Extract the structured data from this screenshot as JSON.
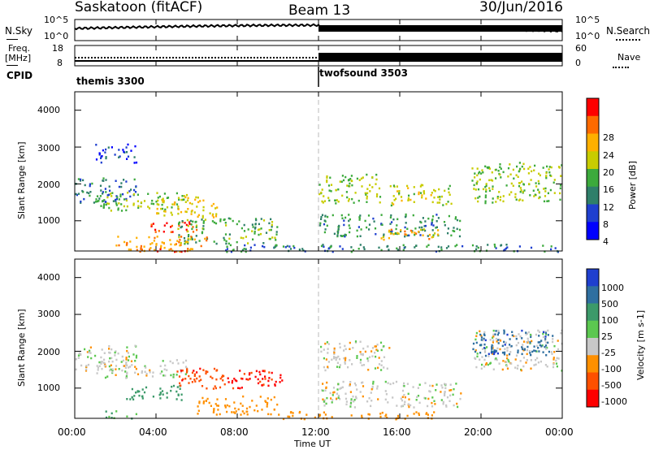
{
  "header": {
    "station": "Saskatoon (fitACF)",
    "beam": "Beam 13",
    "date": "30/Jun/2016"
  },
  "side_labels": {
    "nsky": "N.Sky",
    "freq_line1": "Freq.",
    "freq_line2": "[MHz]",
    "cpid": "CPID",
    "nsearch": "N.Search",
    "nave": "Nave"
  },
  "noise_axis": {
    "left_ticks": [
      "10^5",
      "10^0"
    ],
    "right_ticks": [
      "10^5",
      "10^0"
    ]
  },
  "freq_axis": {
    "left_ticks": [
      "18",
      "8"
    ],
    "right_ticks": [
      "60",
      "0"
    ]
  },
  "cpid_modes": [
    {
      "name": "themis 3300",
      "start_hour": 0,
      "end_hour": 12.0
    },
    {
      "name": "twofsound 3503",
      "start_hour": 12.0,
      "end_hour": 24
    }
  ],
  "time_axis": {
    "label": "Time UT",
    "ticks": [
      "00:00",
      "04:00",
      "08:00",
      "12:00",
      "16:00",
      "20:00",
      "00:00"
    ],
    "range_hours": [
      0,
      24
    ]
  },
  "chart_data": [
    {
      "type": "heatmap",
      "name": "power",
      "ylabel": "Slant Range [km]",
      "yticks": [
        "4000",
        "3000",
        "2000",
        "1000"
      ],
      "ylim": [
        180,
        4500
      ],
      "colorbar": {
        "label": "Power [dB]",
        "ticks": [
          "28",
          "24",
          "20",
          "16",
          "12",
          "8",
          "4"
        ],
        "colors": [
          "#ff0000",
          "#ff6a00",
          "#ffb000",
          "#c8cc00",
          "#3caa3c",
          "#2f7f6a",
          "#1f3fcf",
          "#0000ff"
        ]
      },
      "echo_regions": [
        {
          "t0": 0.0,
          "t1": 3.0,
          "r0": 1500,
          "r1": 2200,
          "power": 8
        },
        {
          "t0": 1.0,
          "t1": 5.5,
          "r0": 1300,
          "r1": 1800,
          "power": 14
        },
        {
          "t0": 1.0,
          "t1": 3.0,
          "r0": 2600,
          "r1": 3100,
          "power": 5
        },
        {
          "t0": 3.5,
          "t1": 6.0,
          "r0": 700,
          "r1": 1000,
          "power": 28
        },
        {
          "t0": 4.0,
          "t1": 7.0,
          "r0": 1100,
          "r1": 1700,
          "power": 18
        },
        {
          "t0": 5.0,
          "t1": 10.0,
          "r0": 400,
          "r1": 1100,
          "power": 12
        },
        {
          "t0": 2.0,
          "t1": 6.5,
          "r0": 180,
          "r1": 600,
          "power": 22
        },
        {
          "t0": 4.0,
          "t1": 5.5,
          "r0": 180,
          "r1": 300,
          "power": 28
        },
        {
          "t0": 12.0,
          "t1": 15.0,
          "r0": 1500,
          "r1": 2300,
          "power": 14
        },
        {
          "t0": 12.0,
          "t1": 19.0,
          "r0": 600,
          "r1": 1200,
          "power": 10
        },
        {
          "t0": 15.5,
          "t1": 18.5,
          "r0": 1400,
          "r1": 2000,
          "power": 16
        },
        {
          "t0": 15.0,
          "t1": 18.0,
          "r0": 500,
          "r1": 800,
          "power": 20
        },
        {
          "t0": 19.5,
          "t1": 24.0,
          "r0": 1500,
          "r1": 2600,
          "power": 14
        },
        {
          "t0": 7.0,
          "t1": 24.0,
          "r0": 180,
          "r1": 380,
          "power": 9
        }
      ]
    },
    {
      "type": "heatmap",
      "name": "velocity",
      "ylabel": "Slant Range [km]",
      "yticks": [
        "4000",
        "3000",
        "2000",
        "1000"
      ],
      "ylim": [
        180,
        4500
      ],
      "colorbar": {
        "label": "Velocity [m s-1]",
        "ticks": [
          "1000",
          "500",
          "100",
          "25",
          "-25",
          "-100",
          "-500",
          "-1000"
        ],
        "colors": [
          "#1f3fcf",
          "#2f6fa0",
          "#3c9a6a",
          "#5cc850",
          "#c8c8c8",
          "#ff9000",
          "#ff5000",
          "#ff0000"
        ]
      },
      "echo_regions": [
        {
          "t0": 0.0,
          "t1": 3.0,
          "r0": 1500,
          "r1": 2200,
          "velocity": 0
        },
        {
          "t0": 1.0,
          "t1": 5.5,
          "r0": 1300,
          "r1": 1800,
          "velocity": 0
        },
        {
          "t0": 2.5,
          "t1": 5.5,
          "r0": 700,
          "r1": 1100,
          "velocity": 150
        },
        {
          "t0": 1.5,
          "t1": 3.0,
          "r0": 200,
          "r1": 400,
          "velocity": 80
        },
        {
          "t0": 5.0,
          "t1": 7.5,
          "r0": 1000,
          "r1": 1600,
          "velocity": -600
        },
        {
          "t0": 7.5,
          "t1": 10.5,
          "r0": 1000,
          "r1": 1500,
          "velocity": -900
        },
        {
          "t0": 6.0,
          "t1": 10.0,
          "r0": 300,
          "r1": 800,
          "velocity": -80
        },
        {
          "t0": 12.0,
          "t1": 15.5,
          "r0": 1500,
          "r1": 2300,
          "velocity": 0
        },
        {
          "t0": 12.0,
          "t1": 19.0,
          "r0": 500,
          "r1": 1200,
          "velocity": 0
        },
        {
          "t0": 19.5,
          "t1": 24.0,
          "r0": 1500,
          "r1": 2600,
          "velocity": 0
        },
        {
          "t0": 19.5,
          "t1": 23.5,
          "r0": 1900,
          "r1": 2600,
          "velocity": 600
        },
        {
          "t0": 10.0,
          "t1": 18.0,
          "r0": 180,
          "r1": 380,
          "velocity": -90
        }
      ]
    }
  ]
}
